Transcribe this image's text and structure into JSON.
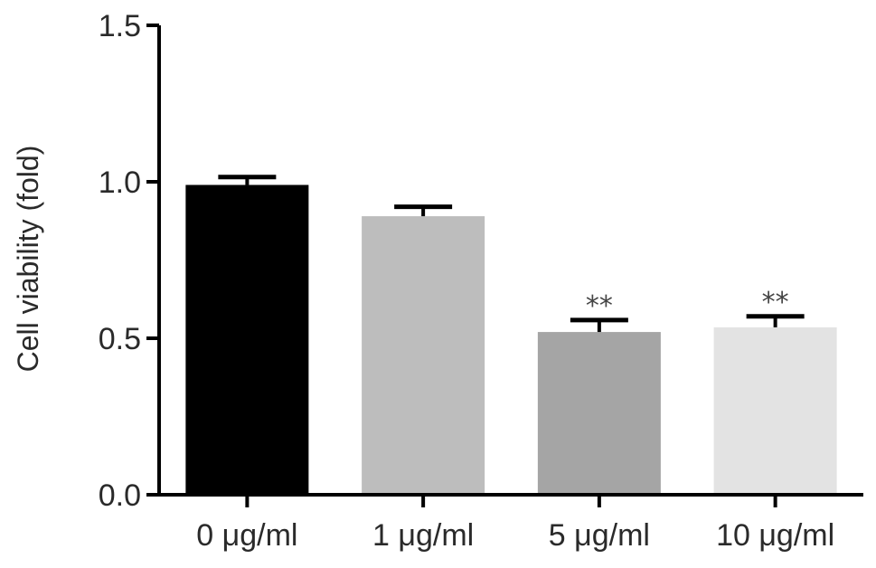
{
  "chart_data": {
    "type": "bar",
    "title": "",
    "xlabel": "",
    "ylabel": "Cell viability (fold)",
    "ylim": [
      0,
      1.5
    ],
    "yticks": [
      "0.0",
      "0.5",
      "1.0",
      "1.5"
    ],
    "categories": [
      "0 μg/ml",
      "1 μg/ml",
      "5 μg/ml",
      "10 μg/ml"
    ],
    "values": [
      0.99,
      0.89,
      0.52,
      0.535
    ],
    "errors": [
      0.025,
      0.03,
      0.038,
      0.035
    ],
    "annotations": [
      "",
      "",
      "**",
      "**"
    ],
    "bar_colors": [
      "#000000",
      "#bdbdbd",
      "#a5a5a5",
      "#e3e3e3"
    ],
    "grid": false,
    "legend": "none"
  }
}
